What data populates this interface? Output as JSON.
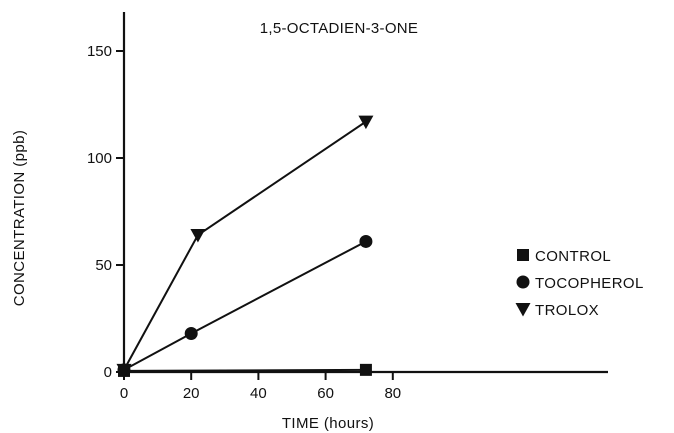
{
  "chart_data": {
    "type": "line",
    "title": "1,5-OCTADIEN-3-ONE",
    "xlabel": "TIME (hours)",
    "ylabel": "CONCENTRATION (ppb)",
    "xlim": [
      0,
      100
    ],
    "ylim": [
      0,
      150
    ],
    "xticks": [
      0,
      20,
      40,
      60,
      80
    ],
    "yticks": [
      0,
      50,
      100,
      150
    ],
    "grid": false,
    "legend_position": "right",
    "series": [
      {
        "name": "CONTROL",
        "marker": "square",
        "x": [
          0,
          72
        ],
        "y": [
          0.5,
          1
        ]
      },
      {
        "name": "TOCOPHEROL",
        "marker": "circle",
        "x": [
          0,
          20,
          72
        ],
        "y": [
          1,
          18,
          61
        ]
      },
      {
        "name": "TROLOX",
        "marker": "triangle-down",
        "x": [
          0,
          22,
          72
        ],
        "y": [
          1,
          64,
          117
        ]
      }
    ]
  }
}
